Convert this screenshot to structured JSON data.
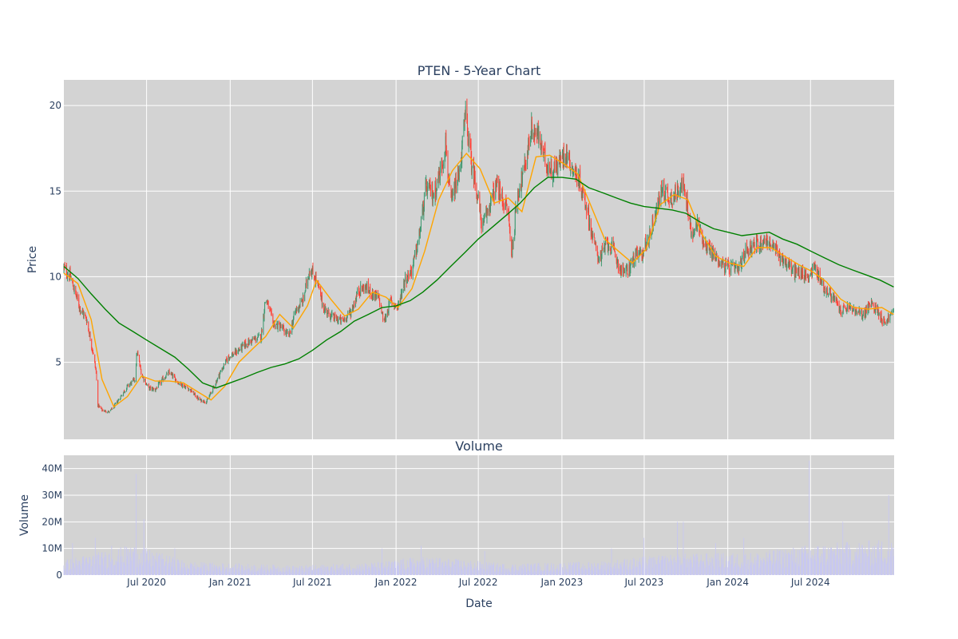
{
  "chart_data": [
    {
      "type": "candlestick",
      "title": "PTEN - 5-Year Chart",
      "ylabel": "Price",
      "ylim": [
        0.5,
        21.5
      ],
      "grid": true,
      "yticks": [
        5,
        10,
        15,
        20
      ],
      "colors": {
        "background": "#d3d3d3",
        "up": "#3d9970",
        "down": "#ff4136",
        "ma_short": "#ffa500",
        "ma_long": "#008000"
      },
      "close_path": [
        [
          "2020-01-01",
          10.5
        ],
        [
          "2020-01-15",
          10.0
        ],
        [
          "2020-02-05",
          8.2
        ],
        [
          "2020-02-20",
          7.5
        ],
        [
          "2020-03-05",
          5.6
        ],
        [
          "2020-03-12",
          4.4
        ],
        [
          "2020-03-16",
          2.5
        ],
        [
          "2020-03-25",
          2.2
        ],
        [
          "2020-04-10",
          2.1
        ],
        [
          "2020-04-20",
          2.4
        ],
        [
          "2020-05-05",
          3.0
        ],
        [
          "2020-05-20",
          3.6
        ],
        [
          "2020-06-05",
          4.0
        ],
        [
          "2020-06-10",
          5.6
        ],
        [
          "2020-06-20",
          4.3
        ],
        [
          "2020-07-05",
          3.5
        ],
        [
          "2020-07-20",
          3.4
        ],
        [
          "2020-08-05",
          4.0
        ],
        [
          "2020-08-20",
          4.4
        ],
        [
          "2020-09-10",
          3.8
        ],
        [
          "2020-10-05",
          3.4
        ],
        [
          "2020-10-25",
          2.8
        ],
        [
          "2020-11-10",
          2.7
        ],
        [
          "2020-11-25",
          3.5
        ],
        [
          "2020-12-10",
          4.4
        ],
        [
          "2020-12-28",
          5.3
        ],
        [
          "2021-01-15",
          5.6
        ],
        [
          "2021-02-01",
          6.0
        ],
        [
          "2021-02-20",
          6.3
        ],
        [
          "2021-03-10",
          6.5
        ],
        [
          "2021-03-20",
          8.8
        ],
        [
          "2021-04-05",
          7.3
        ],
        [
          "2021-04-25",
          7.0
        ],
        [
          "2021-05-10",
          6.5
        ],
        [
          "2021-05-25",
          8.0
        ],
        [
          "2021-06-10",
          8.6
        ],
        [
          "2021-06-25",
          10.5
        ],
        [
          "2021-07-10",
          9.8
        ],
        [
          "2021-07-25",
          8.2
        ],
        [
          "2021-08-15",
          7.6
        ],
        [
          "2021-09-05",
          7.4
        ],
        [
          "2021-09-25",
          8.0
        ],
        [
          "2021-10-10",
          9.2
        ],
        [
          "2021-10-25",
          9.4
        ],
        [
          "2021-11-10",
          9.0
        ],
        [
          "2021-11-25",
          8.7
        ],
        [
          "2021-12-05",
          7.3
        ],
        [
          "2021-12-20",
          8.6
        ],
        [
          "2022-01-05",
          8.2
        ],
        [
          "2022-01-20",
          9.8
        ],
        [
          "2022-02-05",
          10.4
        ],
        [
          "2022-02-20",
          12.2
        ],
        [
          "2022-03-08",
          15.2
        ],
        [
          "2022-03-25",
          14.8
        ],
        [
          "2022-04-10",
          16.3
        ],
        [
          "2022-04-20",
          17.8
        ],
        [
          "2022-05-01",
          14.2
        ],
        [
          "2022-05-20",
          16.0
        ],
        [
          "2022-06-03",
          19.5
        ],
        [
          "2022-06-15",
          16.8
        ],
        [
          "2022-06-25",
          15.5
        ],
        [
          "2022-07-10",
          12.8
        ],
        [
          "2022-07-25",
          14.2
        ],
        [
          "2022-08-10",
          15.3
        ],
        [
          "2022-08-25",
          14.4
        ],
        [
          "2022-09-05",
          13.8
        ],
        [
          "2022-09-12",
          11.2
        ],
        [
          "2022-09-25",
          14.8
        ],
        [
          "2022-10-10",
          16.2
        ],
        [
          "2022-10-25",
          18.6
        ],
        [
          "2022-11-10",
          18.2
        ],
        [
          "2022-11-25",
          16.8
        ],
        [
          "2022-12-10",
          16.2
        ],
        [
          "2022-12-25",
          16.6
        ],
        [
          "2023-01-10",
          17.3
        ],
        [
          "2023-01-25",
          16.3
        ],
        [
          "2023-02-10",
          15.5
        ],
        [
          "2023-02-25",
          14.0
        ],
        [
          "2023-03-10",
          12.2
        ],
        [
          "2023-03-25",
          11.0
        ],
        [
          "2023-04-10",
          12.0
        ],
        [
          "2023-04-25",
          11.5
        ],
        [
          "2023-05-10",
          10.4
        ],
        [
          "2023-05-25",
          10.3
        ],
        [
          "2023-06-10",
          11.2
        ],
        [
          "2023-06-25",
          11.3
        ],
        [
          "2023-07-10",
          12.2
        ],
        [
          "2023-07-25",
          13.6
        ],
        [
          "2023-08-10",
          15.2
        ],
        [
          "2023-08-25",
          14.6
        ],
        [
          "2023-09-10",
          14.8
        ],
        [
          "2023-09-20",
          15.7
        ],
        [
          "2023-10-05",
          14.0
        ],
        [
          "2023-10-15",
          12.1
        ],
        [
          "2023-10-25",
          13.2
        ],
        [
          "2023-11-10",
          12.0
        ],
        [
          "2023-11-25",
          11.5
        ],
        [
          "2023-12-10",
          11.0
        ],
        [
          "2023-12-25",
          10.6
        ],
        [
          "2024-01-10",
          10.5
        ],
        [
          "2024-01-25",
          10.4
        ],
        [
          "2024-02-10",
          11.6
        ],
        [
          "2024-02-25",
          11.8
        ],
        [
          "2024-03-10",
          11.9
        ],
        [
          "2024-03-25",
          12.2
        ],
        [
          "2024-04-10",
          11.7
        ],
        [
          "2024-04-25",
          11.2
        ],
        [
          "2024-05-10",
          10.8
        ],
        [
          "2024-05-25",
          10.3
        ],
        [
          "2024-06-10",
          10.2
        ],
        [
          "2024-06-25",
          10.0
        ],
        [
          "2024-07-10",
          10.6
        ],
        [
          "2024-07-20",
          10.0
        ],
        [
          "2024-08-01",
          9.3
        ],
        [
          "2024-08-20",
          8.8
        ],
        [
          "2024-09-05",
          8.0
        ],
        [
          "2024-09-25",
          8.2
        ],
        [
          "2024-10-10",
          7.9
        ],
        [
          "2024-10-25",
          7.8
        ],
        [
          "2024-11-10",
          8.4
        ],
        [
          "2024-11-25",
          8.1
        ],
        [
          "2024-12-10",
          7.3
        ],
        [
          "2024-12-20",
          7.6
        ],
        [
          "2024-12-31",
          8.0
        ]
      ],
      "ma_short": [
        [
          "2020-01-01",
          10.2
        ],
        [
          "2020-02-01",
          9.6
        ],
        [
          "2020-03-01",
          7.5
        ],
        [
          "2020-03-25",
          4.0
        ],
        [
          "2020-04-20",
          2.4
        ],
        [
          "2020-05-20",
          3.0
        ],
        [
          "2020-06-20",
          4.2
        ],
        [
          "2020-07-20",
          3.9
        ],
        [
          "2020-08-20",
          3.9
        ],
        [
          "2020-09-20",
          3.8
        ],
        [
          "2020-10-20",
          3.3
        ],
        [
          "2020-11-20",
          2.8
        ],
        [
          "2020-12-20",
          3.6
        ],
        [
          "2021-01-20",
          5.0
        ],
        [
          "2021-02-20",
          5.8
        ],
        [
          "2021-03-20",
          6.5
        ],
        [
          "2021-04-20",
          7.8
        ],
        [
          "2021-05-20",
          7.0
        ],
        [
          "2021-06-20",
          8.3
        ],
        [
          "2021-07-10",
          9.8
        ],
        [
          "2021-08-10",
          8.7
        ],
        [
          "2021-09-10",
          7.7
        ],
        [
          "2021-10-10",
          8.1
        ],
        [
          "2021-11-10",
          9.1
        ],
        [
          "2021-12-10",
          8.8
        ],
        [
          "2022-01-05",
          8.2
        ],
        [
          "2022-02-05",
          9.3
        ],
        [
          "2022-03-05",
          11.5
        ],
        [
          "2022-04-05",
          14.5
        ],
        [
          "2022-05-05",
          16.2
        ],
        [
          "2022-06-05",
          17.2
        ],
        [
          "2022-07-05",
          16.3
        ],
        [
          "2022-08-05",
          14.3
        ],
        [
          "2022-09-05",
          14.6
        ],
        [
          "2022-10-05",
          13.8
        ],
        [
          "2022-11-05",
          17.0
        ],
        [
          "2022-12-05",
          17.1
        ],
        [
          "2023-01-05",
          16.6
        ],
        [
          "2023-02-05",
          16.0
        ],
        [
          "2023-03-05",
          14.2
        ],
        [
          "2023-04-05",
          12.2
        ],
        [
          "2023-05-05",
          11.5
        ],
        [
          "2023-06-05",
          10.8
        ],
        [
          "2023-07-05",
          11.6
        ],
        [
          "2023-08-05",
          14.2
        ],
        [
          "2023-09-05",
          14.8
        ],
        [
          "2023-10-05",
          14.5
        ],
        [
          "2023-11-05",
          12.5
        ],
        [
          "2023-12-05",
          11.2
        ],
        [
          "2024-01-05",
          10.8
        ],
        [
          "2024-02-05",
          10.6
        ],
        [
          "2024-03-05",
          11.7
        ],
        [
          "2024-04-05",
          11.7
        ],
        [
          "2024-05-05",
          11.2
        ],
        [
          "2024-06-05",
          10.7
        ],
        [
          "2024-07-05",
          10.3
        ],
        [
          "2024-08-05",
          9.7
        ],
        [
          "2024-09-05",
          8.7
        ],
        [
          "2024-10-05",
          8.2
        ],
        [
          "2024-11-05",
          8.1
        ],
        [
          "2024-12-05",
          8.2
        ],
        [
          "2024-12-31",
          7.8
        ]
      ],
      "ma_long": [
        [
          "2020-01-01",
          10.6
        ],
        [
          "2020-02-01",
          9.9
        ],
        [
          "2020-03-01",
          9.0
        ],
        [
          "2020-04-01",
          8.1
        ],
        [
          "2020-05-01",
          7.3
        ],
        [
          "2020-06-01",
          6.8
        ],
        [
          "2020-07-01",
          6.3
        ],
        [
          "2020-08-01",
          5.8
        ],
        [
          "2020-09-01",
          5.3
        ],
        [
          "2020-10-01",
          4.6
        ],
        [
          "2020-11-01",
          3.8
        ],
        [
          "2020-12-01",
          3.5
        ],
        [
          "2021-01-01",
          3.8
        ],
        [
          "2021-02-01",
          4.1
        ],
        [
          "2021-03-01",
          4.4
        ],
        [
          "2021-04-01",
          4.7
        ],
        [
          "2021-05-01",
          4.9
        ],
        [
          "2021-06-01",
          5.2
        ],
        [
          "2021-07-01",
          5.7
        ],
        [
          "2021-08-01",
          6.3
        ],
        [
          "2021-09-01",
          6.8
        ],
        [
          "2021-10-01",
          7.4
        ],
        [
          "2021-11-01",
          7.8
        ],
        [
          "2021-12-01",
          8.2
        ],
        [
          "2022-01-01",
          8.3
        ],
        [
          "2022-02-01",
          8.6
        ],
        [
          "2022-03-01",
          9.1
        ],
        [
          "2022-04-01",
          9.8
        ],
        [
          "2022-05-01",
          10.6
        ],
        [
          "2022-06-01",
          11.4
        ],
        [
          "2022-07-01",
          12.2
        ],
        [
          "2022-08-01",
          12.9
        ],
        [
          "2022-09-01",
          13.6
        ],
        [
          "2022-10-01",
          14.3
        ],
        [
          "2022-11-01",
          15.2
        ],
        [
          "2022-12-01",
          15.8
        ],
        [
          "2023-01-01",
          15.8
        ],
        [
          "2023-02-01",
          15.7
        ],
        [
          "2023-03-01",
          15.2
        ],
        [
          "2023-04-01",
          14.9
        ],
        [
          "2023-05-01",
          14.6
        ],
        [
          "2023-06-01",
          14.3
        ],
        [
          "2023-07-01",
          14.1
        ],
        [
          "2023-08-01",
          14.0
        ],
        [
          "2023-09-01",
          13.9
        ],
        [
          "2023-10-01",
          13.7
        ],
        [
          "2023-11-01",
          13.2
        ],
        [
          "2023-12-01",
          12.8
        ],
        [
          "2024-01-01",
          12.6
        ],
        [
          "2024-02-01",
          12.4
        ],
        [
          "2024-03-01",
          12.5
        ],
        [
          "2024-04-01",
          12.6
        ],
        [
          "2024-05-01",
          12.2
        ],
        [
          "2024-06-01",
          11.9
        ],
        [
          "2024-07-01",
          11.5
        ],
        [
          "2024-08-01",
          11.1
        ],
        [
          "2024-09-01",
          10.7
        ],
        [
          "2024-10-01",
          10.4
        ],
        [
          "2024-11-01",
          10.1
        ],
        [
          "2024-12-01",
          9.8
        ],
        [
          "2024-12-31",
          9.4
        ]
      ]
    },
    {
      "type": "bar",
      "title": "Volume",
      "xlabel": "Date",
      "ylabel": "Volume",
      "ylim": [
        0,
        45000000
      ],
      "grid": true,
      "xrange": [
        "2020-01-01",
        "2025-01-01"
      ],
      "yticks": [
        0,
        10000000,
        20000000,
        30000000,
        40000000
      ],
      "ytick_labels": [
        "0",
        "10M",
        "20M",
        "30M",
        "40M"
      ],
      "xticks": [
        "2020-07-01",
        "2021-01-01",
        "2021-07-01",
        "2022-01-01",
        "2022-07-01",
        "2023-01-01",
        "2023-07-01",
        "2024-01-01",
        "2024-07-01"
      ],
      "xtick_labels": [
        "Jul 2020",
        "Jan 2021",
        "Jul 2021",
        "Jan 2022",
        "Jul 2022",
        "Jan 2023",
        "Jul 2023",
        "Jan 2024",
        "Jul 2024"
      ],
      "colors": {
        "bar": "#c8c8f0",
        "background": "#d3d3d3"
      },
      "base_level": [
        [
          "2020-01-01",
          4000000
        ],
        [
          "2020-06-01",
          8000000
        ],
        [
          "2020-10-01",
          3500000
        ],
        [
          "2021-06-01",
          2500000
        ],
        [
          "2021-12-01",
          3500000
        ],
        [
          "2022-03-01",
          5000000
        ],
        [
          "2022-09-01",
          3000000
        ],
        [
          "2023-03-01",
          3500000
        ],
        [
          "2023-09-01",
          5500000
        ],
        [
          "2024-03-01",
          6000000
        ],
        [
          "2024-07-01",
          8000000
        ],
        [
          "2024-12-31",
          9500000
        ]
      ],
      "spikes": [
        [
          "2020-01-20",
          12000000
        ],
        [
          "2020-03-10",
          14000000
        ],
        [
          "2020-04-15",
          11000000
        ],
        [
          "2020-06-08",
          38000000
        ],
        [
          "2020-06-25",
          21000000
        ],
        [
          "2020-09-01",
          10000000
        ],
        [
          "2021-12-01",
          10000000
        ],
        [
          "2022-02-25",
          11000000
        ],
        [
          "2022-07-15",
          9000000
        ],
        [
          "2023-04-20",
          10000000
        ],
        [
          "2023-06-30",
          14000000
        ],
        [
          "2023-09-12",
          20000000
        ],
        [
          "2023-09-25",
          20000000
        ],
        [
          "2023-12-05",
          12000000
        ],
        [
          "2024-02-05",
          14000000
        ],
        [
          "2024-06-28",
          43000000
        ],
        [
          "2024-09-10",
          20000000
        ],
        [
          "2024-11-10",
          16000000
        ],
        [
          "2024-12-20",
          30000000
        ]
      ]
    }
  ]
}
